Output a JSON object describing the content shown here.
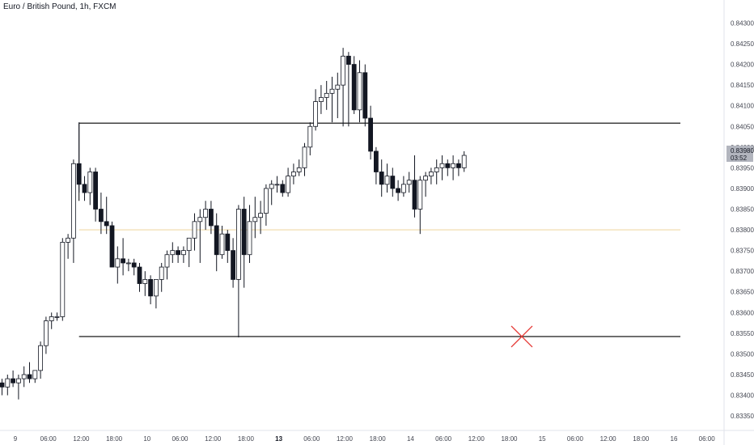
{
  "header": {
    "title": "Euro / British Pound, 1h, FXCM"
  },
  "price_label": {
    "price": "0.83980",
    "countdown": "03:52"
  },
  "chart_data": {
    "type": "candlestick",
    "title": "Euro / British Pound, 1h, FXCM",
    "x_tick_labels": [
      {
        "label": "9",
        "bold": false
      },
      {
        "label": "06:00",
        "bold": false
      },
      {
        "label": "12:00",
        "bold": false
      },
      {
        "label": "18:00",
        "bold": false
      },
      {
        "label": "10",
        "bold": false
      },
      {
        "label": "06:00",
        "bold": false
      },
      {
        "label": "12:00",
        "bold": false
      },
      {
        "label": "18:00",
        "bold": false
      },
      {
        "label": "13",
        "bold": true
      },
      {
        "label": "06:00",
        "bold": false
      },
      {
        "label": "12:00",
        "bold": false
      },
      {
        "label": "18:00",
        "bold": false
      },
      {
        "label": "14",
        "bold": false
      },
      {
        "label": "06:00",
        "bold": false
      },
      {
        "label": "12:00",
        "bold": false
      },
      {
        "label": "18:00",
        "bold": false
      },
      {
        "label": "15",
        "bold": false
      },
      {
        "label": "06:00",
        "bold": false
      },
      {
        "label": "12:00",
        "bold": false
      },
      {
        "label": "18:00",
        "bold": false
      },
      {
        "label": "16",
        "bold": false
      },
      {
        "label": "06:00",
        "bold": false
      }
    ],
    "y_ticks": [
      "0.84300",
      "0.84250",
      "0.84200",
      "0.84150",
      "0.84100",
      "0.84050",
      "0.84000",
      "0.83950",
      "0.83900",
      "0.83850",
      "0.83800",
      "0.83750",
      "0.83700",
      "0.83650",
      "0.83600",
      "0.83550",
      "0.83500",
      "0.83450",
      "0.83400",
      "0.83350"
    ],
    "y_range": [
      0.83315,
      0.8434
    ],
    "levels": [
      {
        "price": 0.84058,
        "color": "#000000"
      },
      {
        "price": 0.838,
        "color": "#f0d9a8"
      },
      {
        "price": 0.83542,
        "color": "#000000"
      }
    ],
    "marker": {
      "type": "x",
      "price": 0.83542,
      "color": "#e53935"
    },
    "candles": [
      [
        0.8343,
        0.8344,
        0.834,
        0.8342
      ],
      [
        0.8342,
        0.8345,
        0.834,
        0.8344
      ],
      [
        0.8344,
        0.8346,
        0.8342,
        0.8343
      ],
      [
        0.8343,
        0.8345,
        0.8339,
        0.8344
      ],
      [
        0.8344,
        0.8347,
        0.8342,
        0.8345
      ],
      [
        0.8345,
        0.8348,
        0.8343,
        0.8344
      ],
      [
        0.8344,
        0.8346,
        0.8343,
        0.8346
      ],
      [
        0.8346,
        0.8353,
        0.8344,
        0.8352
      ],
      [
        0.8352,
        0.8359,
        0.835,
        0.8358
      ],
      [
        0.8358,
        0.836,
        0.8356,
        0.8359
      ],
      [
        0.8359,
        0.836,
        0.8358,
        0.8359
      ],
      [
        0.8359,
        0.8378,
        0.8358,
        0.8377
      ],
      [
        0.8377,
        0.8379,
        0.8373,
        0.8378
      ],
      [
        0.8378,
        0.8397,
        0.8372,
        0.8396
      ],
      [
        0.8396,
        0.8406,
        0.8389,
        0.8391
      ],
      [
        0.8391,
        0.8393,
        0.8387,
        0.8389
      ],
      [
        0.8389,
        0.8395,
        0.8386,
        0.8394
      ],
      [
        0.8394,
        0.8395,
        0.8382,
        0.8385
      ],
      [
        0.8385,
        0.8389,
        0.8379,
        0.8382
      ],
      [
        0.8382,
        0.8388,
        0.8379,
        0.8381
      ],
      [
        0.8381,
        0.8382,
        0.8371,
        0.8371
      ],
      [
        0.8371,
        0.8376,
        0.8367,
        0.8373
      ],
      [
        0.8373,
        0.8378,
        0.8369,
        0.8372
      ],
      [
        0.8372,
        0.8373,
        0.837,
        0.8372
      ],
      [
        0.8372,
        0.8373,
        0.8369,
        0.8371
      ],
      [
        0.8371,
        0.8372,
        0.8365,
        0.8367
      ],
      [
        0.8367,
        0.837,
        0.8364,
        0.8368
      ],
      [
        0.8368,
        0.8369,
        0.8362,
        0.8364
      ],
      [
        0.8364,
        0.8368,
        0.8361,
        0.8368
      ],
      [
        0.8368,
        0.8372,
        0.8365,
        0.8371
      ],
      [
        0.8371,
        0.8375,
        0.8368,
        0.8374
      ],
      [
        0.8374,
        0.8377,
        0.8372,
        0.8375
      ],
      [
        0.8375,
        0.8376,
        0.8372,
        0.8374
      ],
      [
        0.8374,
        0.8376,
        0.8372,
        0.8375
      ],
      [
        0.8375,
        0.8378,
        0.8371,
        0.8378
      ],
      [
        0.8378,
        0.8384,
        0.8375,
        0.8382
      ],
      [
        0.8382,
        0.8385,
        0.8372,
        0.8383
      ],
      [
        0.8383,
        0.8387,
        0.838,
        0.8385
      ],
      [
        0.8385,
        0.8387,
        0.8379,
        0.8381
      ],
      [
        0.8381,
        0.8384,
        0.837,
        0.8374
      ],
      [
        0.8374,
        0.8381,
        0.8373,
        0.8379
      ],
      [
        0.8379,
        0.838,
        0.8372,
        0.8375
      ],
      [
        0.8375,
        0.8378,
        0.8366,
        0.8368
      ],
      [
        0.8368,
        0.8386,
        0.8354,
        0.8385
      ],
      [
        0.8385,
        0.8388,
        0.8366,
        0.8374
      ],
      [
        0.8374,
        0.8386,
        0.8372,
        0.8382
      ],
      [
        0.8382,
        0.8388,
        0.8378,
        0.8383
      ],
      [
        0.8383,
        0.8387,
        0.8379,
        0.8384
      ],
      [
        0.8384,
        0.8391,
        0.8381,
        0.839
      ],
      [
        0.839,
        0.8392,
        0.8386,
        0.8391
      ],
      [
        0.8391,
        0.8393,
        0.8389,
        0.8391
      ],
      [
        0.8391,
        0.8392,
        0.8388,
        0.8389
      ],
      [
        0.8389,
        0.8395,
        0.8388,
        0.8393
      ],
      [
        0.8393,
        0.8396,
        0.8391,
        0.8394
      ],
      [
        0.8394,
        0.8397,
        0.8393,
        0.8395
      ],
      [
        0.8395,
        0.8401,
        0.8393,
        0.84
      ],
      [
        0.84,
        0.8406,
        0.8398,
        0.8405
      ],
      [
        0.8405,
        0.8414,
        0.8404,
        0.8411
      ],
      [
        0.8411,
        0.8415,
        0.8408,
        0.8412
      ],
      [
        0.8412,
        0.8416,
        0.8409,
        0.8413
      ],
      [
        0.8413,
        0.8417,
        0.8406,
        0.8414
      ],
      [
        0.8414,
        0.8418,
        0.8407,
        0.8415
      ],
      [
        0.8415,
        0.8424,
        0.8405,
        0.8422
      ],
      [
        0.8422,
        0.8423,
        0.8405,
        0.842
      ],
      [
        0.842,
        0.8422,
        0.8408,
        0.8409
      ],
      [
        0.8409,
        0.8421,
        0.8406,
        0.8418
      ],
      [
        0.8418,
        0.842,
        0.8405,
        0.8407
      ],
      [
        0.8407,
        0.841,
        0.8397,
        0.8399
      ],
      [
        0.8399,
        0.84,
        0.8391,
        0.8394
      ],
      [
        0.8394,
        0.8397,
        0.8388,
        0.8391
      ],
      [
        0.8391,
        0.8396,
        0.8389,
        0.8393
      ],
      [
        0.8393,
        0.8395,
        0.8388,
        0.839
      ],
      [
        0.839,
        0.8392,
        0.8387,
        0.8389
      ],
      [
        0.8389,
        0.8393,
        0.8388,
        0.8391
      ],
      [
        0.8391,
        0.8394,
        0.8389,
        0.8392
      ],
      [
        0.8392,
        0.8398,
        0.8383,
        0.8385
      ],
      [
        0.8385,
        0.8393,
        0.8379,
        0.8392
      ],
      [
        0.8392,
        0.8394,
        0.8388,
        0.8393
      ],
      [
        0.8393,
        0.8395,
        0.8391,
        0.8394
      ],
      [
        0.8394,
        0.8397,
        0.8391,
        0.8395
      ],
      [
        0.8395,
        0.8398,
        0.8392,
        0.8396
      ],
      [
        0.8396,
        0.8397,
        0.8393,
        0.8395
      ],
      [
        0.8395,
        0.8398,
        0.8392,
        0.8396
      ],
      [
        0.8396,
        0.8397,
        0.8393,
        0.8395
      ],
      [
        0.8395,
        0.8399,
        0.8394,
        0.8398
      ]
    ]
  }
}
